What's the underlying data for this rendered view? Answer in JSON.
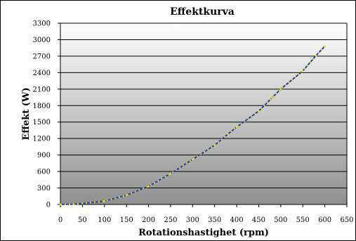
{
  "chart_data": {
    "type": "line",
    "title": "Effektkurva",
    "xlabel": "Rotationshastighet (rpm)",
    "ylabel": "Effekt (W)",
    "xlim": [
      0,
      650
    ],
    "ylim": [
      0,
      3300
    ],
    "x_ticks": [
      "0",
      "50",
      "100",
      "150",
      "200",
      "250",
      "300",
      "350",
      "400",
      "450",
      "500",
      "550",
      "600",
      "650"
    ],
    "y_ticks": [
      "0",
      "300",
      "600",
      "900",
      "1200",
      "1500",
      "1800",
      "2100",
      "2400",
      "2700",
      "3000",
      "3300"
    ],
    "grid": true,
    "background": "gradient white to gray",
    "series": [
      {
        "line_color": "#1f3fbf",
        "marker_color": "#f2e600",
        "x": [
          0,
          30,
          50,
          100,
          150,
          200,
          250,
          300,
          350,
          380,
          400,
          450,
          480,
          500,
          550,
          580,
          600
        ],
        "y": [
          0,
          5,
          20,
          60,
          170,
          330,
          560,
          820,
          1080,
          1280,
          1410,
          1700,
          1940,
          2100,
          2430,
          2710,
          2880
        ]
      }
    ]
  }
}
